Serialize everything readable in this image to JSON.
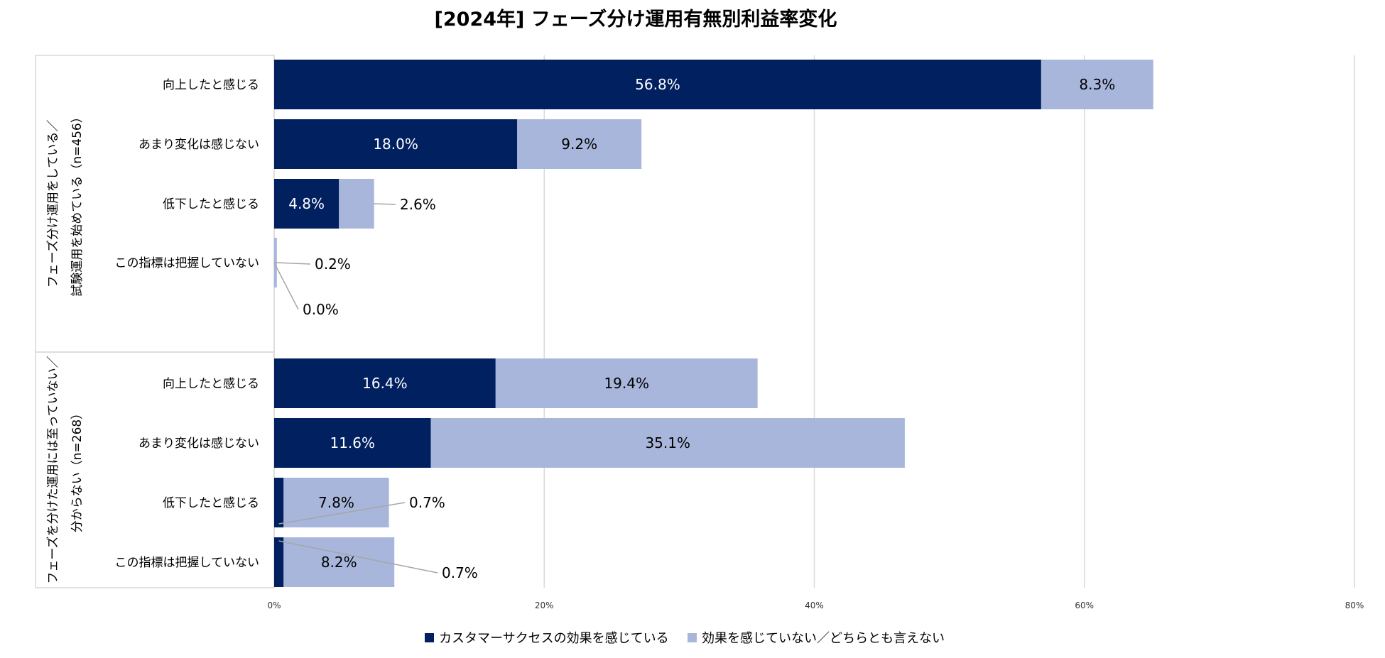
{
  "colors": {
    "series1": "#002060",
    "series2": "#a9b6dc",
    "grid": "#d9d9d9",
    "leader": "#a6a6a6",
    "frame": "#d9d9d9"
  },
  "chart_data": {
    "type": "bar",
    "orientation": "horizontal",
    "stacked": true,
    "title": "[2024年] フェーズ分け運用有無別利益率変化",
    "xlim": [
      0,
      80
    ],
    "x_ticks": [
      "0%",
      "20%",
      "40%",
      "60%",
      "80%"
    ],
    "grid": true,
    "legend_position": "bottom",
    "groups": [
      {
        "label_lines": [
          "フェーズ分け運用をしている／",
          "試験運用を始めている（n=456）"
        ],
        "categories": [
          "向上したと感じる",
          "あまり変化は感じない",
          "低下したと感じる",
          "この指標は把握していない",
          ""
        ]
      },
      {
        "label_lines": [
          "フェーズを分けた運用には至っていない／",
          "分からない（n=268）"
        ],
        "categories": [
          "向上したと感じる",
          "あまり変化は感じない",
          "低下したと感じる",
          "この指標は把握していない"
        ]
      }
    ],
    "series": [
      {
        "name": "カスタマーサクセスの効果を感じている",
        "values": [
          56.8,
          18.0,
          4.8,
          0.0,
          null,
          16.4,
          11.6,
          0.7,
          0.7
        ],
        "labels": [
          "56.8%",
          "18.0%",
          "4.8%",
          "0.0%",
          "",
          "16.4%",
          "11.6%",
          "0.7%",
          "0.7%"
        ]
      },
      {
        "name": "効果を感じていない／どちらとも言えない",
        "values": [
          8.3,
          9.2,
          2.6,
          0.2,
          null,
          19.4,
          35.1,
          7.8,
          8.2
        ],
        "labels": [
          "8.3%",
          "9.2%",
          "2.6%",
          "0.2%",
          "",
          "19.4%",
          "35.1%",
          "7.8%",
          "8.2%"
        ]
      }
    ]
  }
}
